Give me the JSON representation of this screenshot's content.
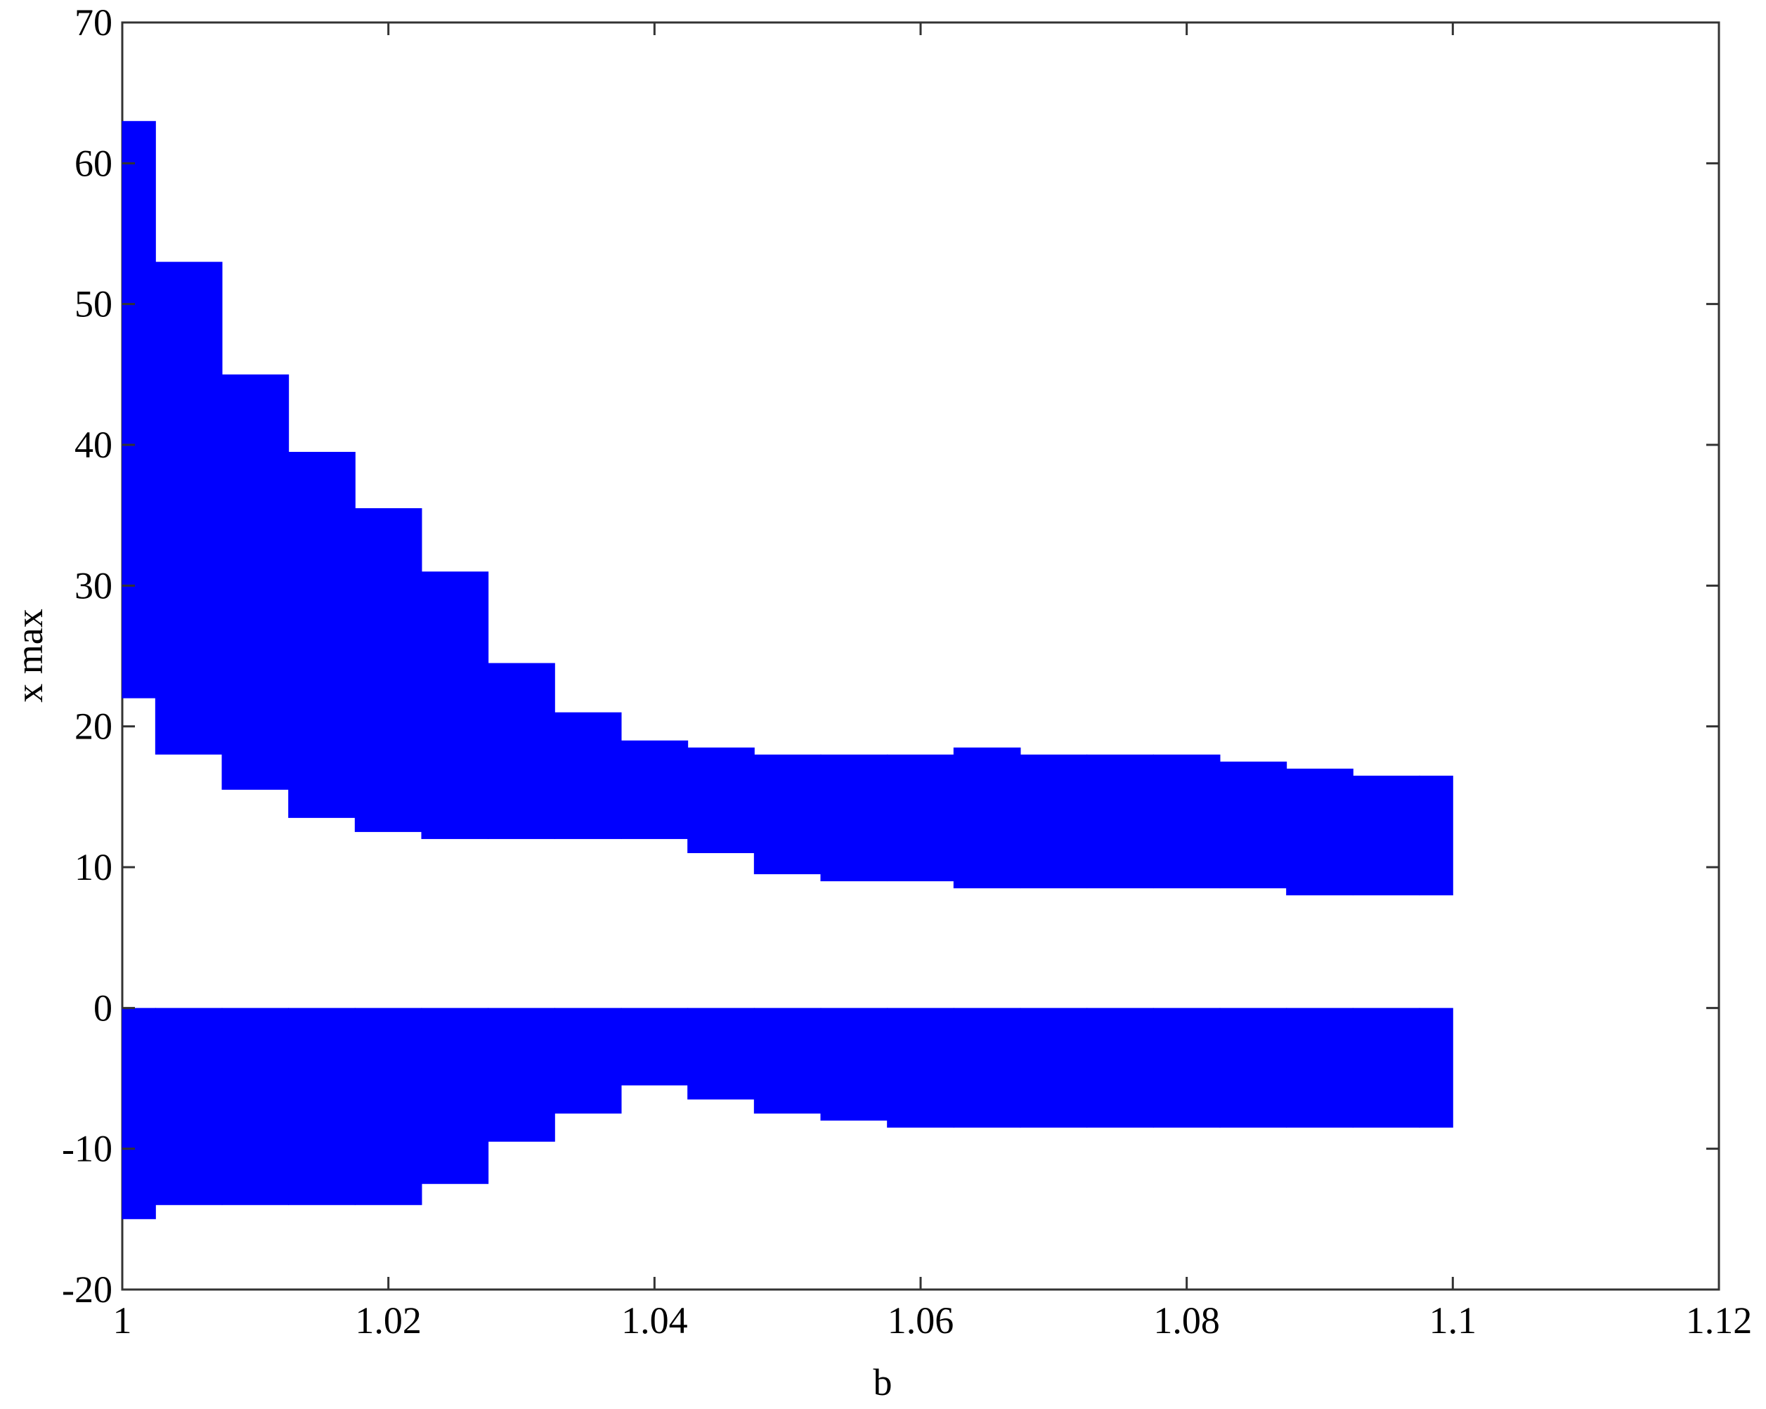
{
  "chart_data": {
    "type": "band",
    "xlabel": "b",
    "ylabel": "x max",
    "x": [
      1,
      1.005,
      1.01,
      1.015,
      1.02,
      1.025,
      1.03,
      1.035,
      1.04,
      1.045,
      1.05,
      1.055,
      1.06,
      1.065,
      1.07,
      1.075,
      1.08,
      1.085,
      1.09,
      1.095,
      1.1
    ],
    "series": [
      {
        "color": "#0000ff",
        "upper": [
          63,
          53,
          45,
          39.5,
          35.5,
          31,
          24.5,
          21,
          19,
          18.5,
          18,
          18,
          18,
          18.5,
          18,
          18,
          18,
          17.5,
          17,
          16.5,
          16.5
        ],
        "lower": [
          22,
          18,
          15.5,
          13.5,
          12.5,
          12,
          12,
          12,
          12,
          11,
          9.5,
          9,
          9,
          8.5,
          8.5,
          8.5,
          8.5,
          8.5,
          8,
          8,
          8
        ]
      },
      {
        "color": "#0000ff",
        "upper": [
          0,
          0,
          0,
          0,
          0,
          0,
          0,
          0,
          0,
          0,
          0,
          0,
          0,
          0,
          0,
          0,
          0,
          0,
          0,
          0,
          0
        ],
        "lower": [
          -15,
          -14,
          -14,
          -14,
          -14,
          -12.5,
          -9.5,
          -7.5,
          -5.5,
          -6.5,
          -7.5,
          -8,
          -8.5,
          -8.5,
          -8.5,
          -8.5,
          -8.5,
          -8.5,
          -8.5,
          -8.5,
          -8.5
        ]
      }
    ],
    "xlim": [
      1,
      1.12
    ],
    "xticks": [
      1,
      1.02,
      1.04,
      1.06,
      1.08,
      1.1,
      1.12
    ],
    "ylim": [
      -20,
      70
    ],
    "yticks": [
      -20,
      -10,
      0,
      10,
      20,
      30,
      40,
      50,
      60,
      70
    ]
  }
}
